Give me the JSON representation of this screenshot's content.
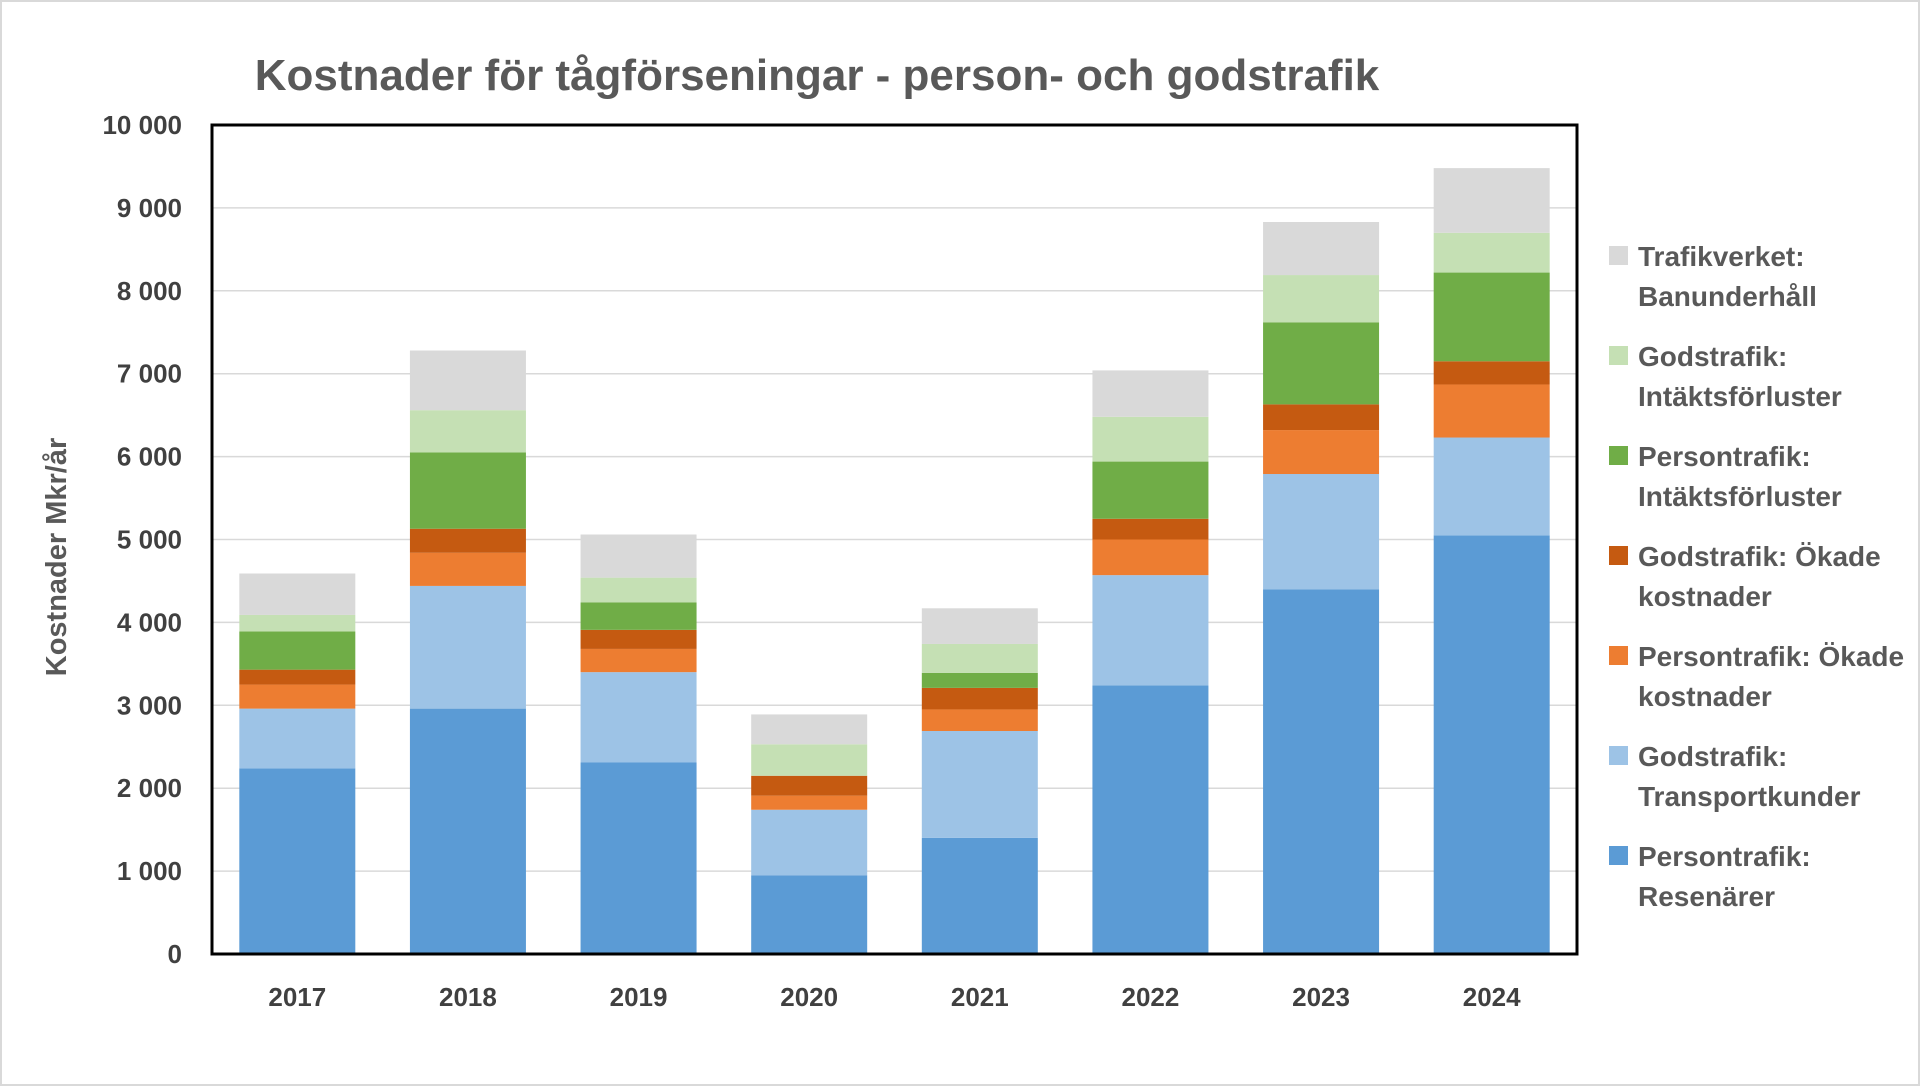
{
  "chart_data": {
    "type": "bar",
    "stacked": true,
    "title": "Kostnader för tågförseningar - person- och godstrafik",
    "xlabel": "",
    "ylabel": "Kostnader Mkr/år",
    "ylim": [
      0,
      10000
    ],
    "yticks": [
      0,
      1000,
      2000,
      3000,
      4000,
      5000,
      6000,
      7000,
      8000,
      9000,
      10000
    ],
    "ytick_labels": [
      "0",
      "1 000",
      "2 000",
      "3 000",
      "4 000",
      "5 000",
      "6 000",
      "7 000",
      "8 000",
      "9 000",
      "10 000"
    ],
    "grid": true,
    "legend_position": "right",
    "categories": [
      "2017",
      "2018",
      "2019",
      "2020",
      "2021",
      "2022",
      "2023",
      "2024"
    ],
    "series": [
      {
        "name": "Persontrafik: Resenärer",
        "color": "#5b9bd5",
        "values": [
          2240,
          2960,
          2310,
          950,
          1400,
          3240,
          4400,
          5050
        ]
      },
      {
        "name": "Godstrafik: Transportkunder",
        "color": "#9dc3e6",
        "values": [
          720,
          1480,
          1090,
          790,
          1290,
          1330,
          1390,
          1180
        ]
      },
      {
        "name": "Persontrafik: Ökade kostnader",
        "color": "#ed7d31",
        "values": [
          290,
          400,
          280,
          170,
          260,
          430,
          530,
          640
        ]
      },
      {
        "name": "Godstrafik: Ökade kostnader",
        "color": "#c55a11",
        "values": [
          180,
          290,
          230,
          240,
          260,
          250,
          310,
          280
        ]
      },
      {
        "name": "Persontrafik: Intäktsförluster",
        "color": "#70ad47",
        "values": [
          460,
          920,
          330,
          0,
          180,
          690,
          990,
          1070
        ]
      },
      {
        "name": "Godstrafik: Intäktsförluster",
        "color": "#c5e0b4",
        "values": [
          200,
          510,
          300,
          380,
          350,
          540,
          570,
          480
        ]
      },
      {
        "name": "Trafikverket: Banunderhåll",
        "color": "#d9d9d9",
        "values": [
          500,
          720,
          520,
          360,
          430,
          560,
          640,
          780
        ]
      }
    ],
    "legend": [
      {
        "lines": [
          "Trafikverket:",
          "Banunderhåll"
        ],
        "color": "#d9d9d9"
      },
      {
        "lines": [
          "Godstrafik:",
          "Intäktsförluster"
        ],
        "color": "#c5e0b4"
      },
      {
        "lines": [
          "Persontrafik:",
          "Intäktsförluster"
        ],
        "color": "#70ad47"
      },
      {
        "lines": [
          "Godstrafik: Ökade",
          "kostnader"
        ],
        "color": "#c55a11"
      },
      {
        "lines": [
          "Persontrafik: Ökade",
          "kostnader"
        ],
        "color": "#ed7d31"
      },
      {
        "lines": [
          "Godstrafik:",
          "Transportkunder"
        ],
        "color": "#9dc3e6"
      },
      {
        "lines": [
          "Persontrafik:",
          "Resenärer"
        ],
        "color": "#5b9bd5"
      }
    ]
  }
}
